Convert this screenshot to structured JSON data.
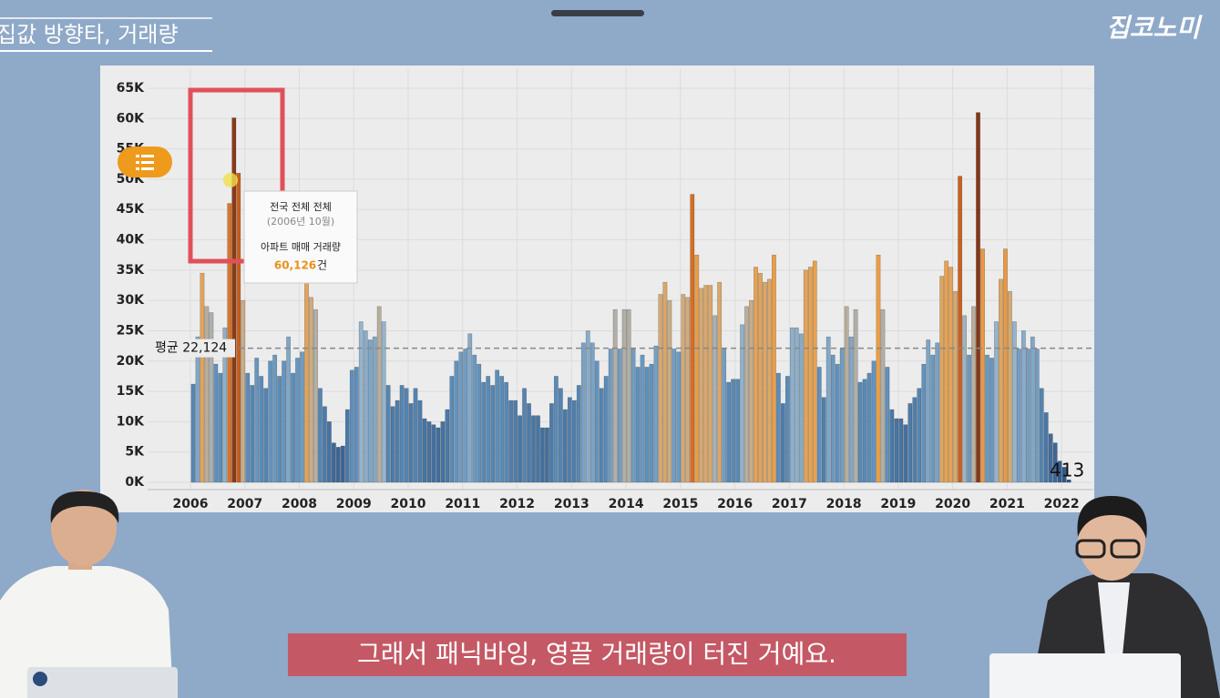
{
  "header": {
    "title": "집값 방향타, 거래량",
    "logo": "집코노미"
  },
  "subtitle": "그래서 패닉바잉, 영끌 거래량이 터진 거예요.",
  "chart_data": {
    "type": "bar",
    "categories": [
      "2006",
      null,
      null,
      null,
      null,
      null,
      null,
      null,
      null,
      null,
      null,
      null,
      "2007",
      null,
      null,
      null,
      null,
      null,
      null,
      null,
      null,
      null,
      null,
      null,
      "2008",
      null,
      null,
      null,
      null,
      null,
      null,
      null,
      null,
      null,
      null,
      null,
      "2009",
      null,
      null,
      null,
      null,
      null,
      null,
      null,
      null,
      null,
      null,
      null,
      "2010",
      null,
      null,
      null,
      null,
      null,
      null,
      null,
      null,
      null,
      null,
      null,
      "2011",
      null,
      null,
      null,
      null,
      null,
      null,
      null,
      null,
      null,
      null,
      null,
      "2012",
      null,
      null,
      null,
      null,
      null,
      null,
      null,
      null,
      null,
      null,
      null,
      "2013",
      null,
      null,
      null,
      null,
      null,
      null,
      null,
      null,
      null,
      null,
      null,
      "2014",
      null,
      null,
      null,
      null,
      null,
      null,
      null,
      null,
      null,
      null,
      null,
      "2015",
      null,
      null,
      null,
      null,
      null,
      null,
      null,
      null,
      null,
      null,
      null,
      "2016",
      null,
      null,
      null,
      null,
      null,
      null,
      null,
      null,
      null,
      null,
      null,
      "2017",
      null,
      null,
      null,
      null,
      null,
      null,
      null,
      null,
      null,
      null,
      null,
      "2018",
      null,
      null,
      null,
      null,
      null,
      null,
      null,
      null,
      null,
      null,
      null,
      "2019",
      null,
      null,
      null,
      null,
      null,
      null,
      null,
      null,
      null,
      null,
      null,
      "2020",
      null,
      null,
      null,
      null,
      null,
      null,
      null,
      null,
      null,
      null,
      null,
      "2021",
      null,
      null,
      null,
      null,
      null,
      null,
      null,
      null,
      null,
      null,
      null,
      "2022",
      null
    ],
    "values": [
      16200,
      24000,
      34500,
      29000,
      28000,
      19500,
      18000,
      25500,
      46000,
      60126,
      51000,
      30000,
      18000,
      16000,
      20500,
      17500,
      15500,
      20000,
      21000,
      17500,
      20000,
      24000,
      18000,
      20500,
      21500,
      34500,
      30500,
      28500,
      15500,
      12500,
      10000,
      6500,
      5800,
      6000,
      12000,
      18500,
      19000,
      26500,
      25000,
      23500,
      24000,
      29000,
      26500,
      16000,
      12500,
      13500,
      16000,
      15500,
      13000,
      15500,
      13500,
      10500,
      10000,
      9500,
      9000,
      10000,
      12000,
      17500,
      20000,
      21500,
      22000,
      24500,
      21000,
      19500,
      16500,
      17500,
      16000,
      18500,
      17500,
      16500,
      13500,
      13500,
      11000,
      15500,
      13000,
      11000,
      11000,
      9000,
      9000,
      13000,
      17500,
      15500,
      12000,
      14000,
      13500,
      16000,
      23000,
      25000,
      23000,
      20000,
      15500,
      17500,
      22000,
      28500,
      22000,
      28500,
      28500,
      22000,
      19000,
      21000,
      19000,
      19500,
      22500,
      31000,
      33000,
      30000,
      22000,
      21500,
      31000,
      30500,
      47500,
      37500,
      32000,
      32500,
      32500,
      27500,
      33000,
      22000,
      16500,
      17000,
      17000,
      26000,
      29000,
      30000,
      35500,
      34500,
      33000,
      33500,
      37500,
      18000,
      13000,
      17500,
      25500,
      25500,
      24500,
      35000,
      35500,
      36500,
      19000,
      14000,
      24000,
      21000,
      19500,
      22000,
      29000,
      24000,
      28500,
      16500,
      17000,
      18000,
      20000,
      37500,
      28500,
      19000,
      12000,
      10500,
      10500,
      9500,
      13000,
      14000,
      15500,
      19500,
      23500,
      21000,
      23000,
      34000,
      36500,
      35500,
      31500,
      50500,
      27500,
      21000,
      29000,
      61000,
      38500,
      21000,
      20500,
      26500,
      33500,
      38500,
      31500,
      26500,
      22000,
      25000,
      22000,
      24000,
      22000,
      15500,
      11500,
      8000,
      6500,
      3500,
      2500,
      413
    ],
    "ylim": [
      -1200,
      68300
    ],
    "yticks": [
      {
        "value": 0,
        "label": "0K"
      },
      {
        "value": 5000,
        "label": "5K"
      },
      {
        "value": 10000,
        "label": "10K"
      },
      {
        "value": 15000,
        "label": "15K"
      },
      {
        "value": 20000,
        "label": "20K"
      },
      {
        "value": 25000,
        "label": "25K"
      },
      {
        "value": 30000,
        "label": "30K"
      },
      {
        "value": 35000,
        "label": "35K"
      },
      {
        "value": 40000,
        "label": "40K"
      },
      {
        "value": 45000,
        "label": "45K"
      },
      {
        "value": 50000,
        "label": "50K"
      },
      {
        "value": 55000,
        "label": "55K"
      },
      {
        "value": 60000,
        "label": "60K"
      },
      {
        "value": 65000,
        "label": "65K"
      }
    ],
    "grid": true,
    "average": {
      "value": 22124,
      "label": "평균 22,124"
    },
    "tooltip": {
      "index": 9,
      "region": "전국 전체 전체",
      "date": "(2006년 10월)",
      "metric": "아파트 매매 거래량",
      "value": {
        "value": 60126,
        "label": "60,126"
      },
      "unit": "건"
    }
  }
}
